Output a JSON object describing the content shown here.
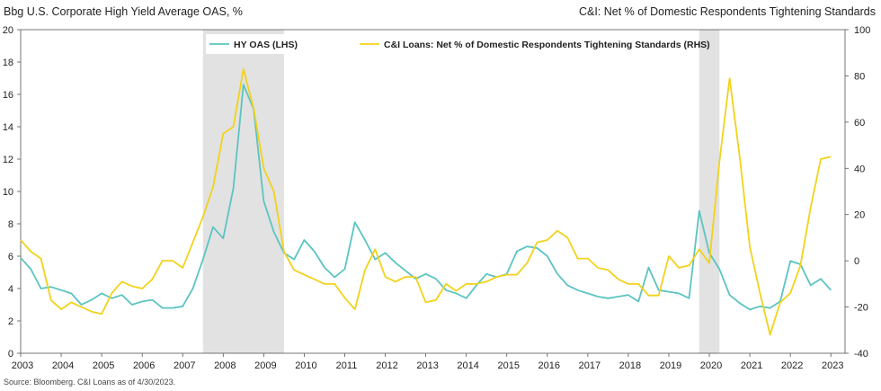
{
  "header": {
    "left_title": "Bbg U.S. Corporate High Yield Average OAS, %",
    "right_title": "C&I: Net % of Domestic Respondents Tightening Standards"
  },
  "footer": {
    "source": "Source: Bloomberg. C&I Loans as of 4/30/2023."
  },
  "colors": {
    "hy": "#5bc4c1",
    "ci": "#f2d21b",
    "recession": "#e2e2e2",
    "axis": "#555555"
  },
  "chart_data": {
    "type": "line",
    "x_ticks": [
      "2003",
      "2004",
      "2005",
      "2006",
      "2007",
      "2008",
      "2009",
      "2010",
      "2011",
      "2012",
      "2013",
      "2014",
      "2015",
      "2016",
      "2017",
      "2018",
      "2019",
      "2020",
      "2021",
      "2022",
      "2023"
    ],
    "xlim": [
      2003.0,
      2023.35
    ],
    "y_left": {
      "lim": [
        0,
        20
      ],
      "ticks": [
        0,
        2,
        4,
        6,
        8,
        10,
        12,
        14,
        16,
        18,
        20
      ]
    },
    "y_right": {
      "lim": [
        -40,
        100
      ],
      "ticks": [
        -40,
        -20,
        0,
        20,
        40,
        60,
        80,
        100
      ]
    },
    "legend_position": "top-center",
    "grid": false,
    "recessions": [
      [
        2007.5,
        2009.5
      ],
      [
        2019.75,
        2020.25
      ]
    ],
    "series": [
      {
        "name": "HY OAS (LHS)",
        "axis": "left",
        "x": [
          2003.0,
          2003.25,
          2003.5,
          2003.75,
          2004.0,
          2004.25,
          2004.5,
          2004.75,
          2005.0,
          2005.25,
          2005.5,
          2005.75,
          2006.0,
          2006.25,
          2006.5,
          2006.75,
          2007.0,
          2007.25,
          2007.5,
          2007.75,
          2008.0,
          2008.25,
          2008.5,
          2008.75,
          2009.0,
          2009.25,
          2009.5,
          2009.75,
          2010.0,
          2010.25,
          2010.5,
          2010.75,
          2011.0,
          2011.25,
          2011.5,
          2011.75,
          2012.0,
          2012.25,
          2012.5,
          2012.75,
          2013.0,
          2013.25,
          2013.5,
          2013.75,
          2014.0,
          2014.25,
          2014.5,
          2014.75,
          2015.0,
          2015.25,
          2015.5,
          2015.75,
          2016.0,
          2016.25,
          2016.5,
          2016.75,
          2017.0,
          2017.25,
          2017.5,
          2017.75,
          2018.0,
          2018.25,
          2018.5,
          2018.75,
          2019.0,
          2019.25,
          2019.5,
          2019.75,
          2020.0,
          2020.25,
          2020.5,
          2020.75,
          2021.0,
          2021.25,
          2021.5,
          2021.75,
          2022.0,
          2022.25,
          2022.5,
          2022.75,
          2023.0
        ],
        "values": [
          5.9,
          5.2,
          4.0,
          4.1,
          3.9,
          3.7,
          3.0,
          3.3,
          3.7,
          3.4,
          3.6,
          3.0,
          3.2,
          3.3,
          2.8,
          2.8,
          2.9,
          4.0,
          5.8,
          7.8,
          7.1,
          10.2,
          16.6,
          15.1,
          9.4,
          7.5,
          6.2,
          5.8,
          7.0,
          6.3,
          5.3,
          4.7,
          5.2,
          8.1,
          7.0,
          5.8,
          6.2,
          5.6,
          5.1,
          4.6,
          4.9,
          4.6,
          3.9,
          3.7,
          3.4,
          4.2,
          4.9,
          4.7,
          4.9,
          6.3,
          6.6,
          6.5,
          6.0,
          4.9,
          4.2,
          3.9,
          3.7,
          3.5,
          3.4,
          3.5,
          3.6,
          3.2,
          5.3,
          3.9,
          3.8,
          3.7,
          3.4,
          8.8,
          6.2,
          5.2,
          3.6,
          3.1,
          2.7,
          2.9,
          2.8,
          3.2,
          5.7,
          5.5,
          4.2,
          4.6,
          3.9
        ]
      },
      {
        "name": "C&I Loans: Net % of Domestic Respondents Tightening Standards (RHS)",
        "axis": "right",
        "x": [
          2003.0,
          2003.25,
          2003.5,
          2003.75,
          2004.0,
          2004.25,
          2004.5,
          2004.75,
          2005.0,
          2005.25,
          2005.5,
          2005.75,
          2006.0,
          2006.25,
          2006.5,
          2006.75,
          2007.0,
          2007.25,
          2007.5,
          2007.75,
          2008.0,
          2008.25,
          2008.5,
          2008.75,
          2009.0,
          2009.25,
          2009.5,
          2009.75,
          2010.0,
          2010.25,
          2010.5,
          2010.75,
          2011.0,
          2011.25,
          2011.5,
          2011.75,
          2012.0,
          2012.25,
          2012.5,
          2012.75,
          2013.0,
          2013.25,
          2013.5,
          2013.75,
          2014.0,
          2014.25,
          2014.5,
          2014.75,
          2015.0,
          2015.25,
          2015.5,
          2015.75,
          2016.0,
          2016.25,
          2016.5,
          2016.75,
          2017.0,
          2017.25,
          2017.5,
          2017.75,
          2018.0,
          2018.25,
          2018.5,
          2018.75,
          2019.0,
          2019.25,
          2019.5,
          2019.75,
          2020.0,
          2020.25,
          2020.5,
          2020.75,
          2021.0,
          2021.25,
          2021.5,
          2021.75,
          2022.0,
          2022.25,
          2022.5,
          2022.75,
          2023.0
        ],
        "values": [
          9,
          4,
          1,
          -17,
          -21,
          -18,
          -20,
          -22,
          -23,
          -14,
          -9,
          -11,
          -12,
          -8,
          0,
          0,
          -3,
          8,
          19,
          32,
          55,
          58,
          83,
          66,
          40,
          30,
          4,
          -4,
          -6,
          -8,
          -10,
          -10,
          -16,
          -21,
          -4,
          5,
          -7,
          -9,
          -7,
          -7,
          -18,
          -17,
          -10,
          -13,
          -10,
          -10,
          -9,
          -7,
          -6,
          -6,
          -1,
          8,
          9,
          13,
          10,
          1,
          1,
          -3,
          -4,
          -8,
          -10,
          -10,
          -15,
          -15,
          2,
          -3,
          -2,
          5,
          -1,
          43,
          79,
          45,
          6,
          -14,
          -32,
          -18,
          -14,
          -2,
          23,
          44,
          45
        ]
      }
    ]
  }
}
